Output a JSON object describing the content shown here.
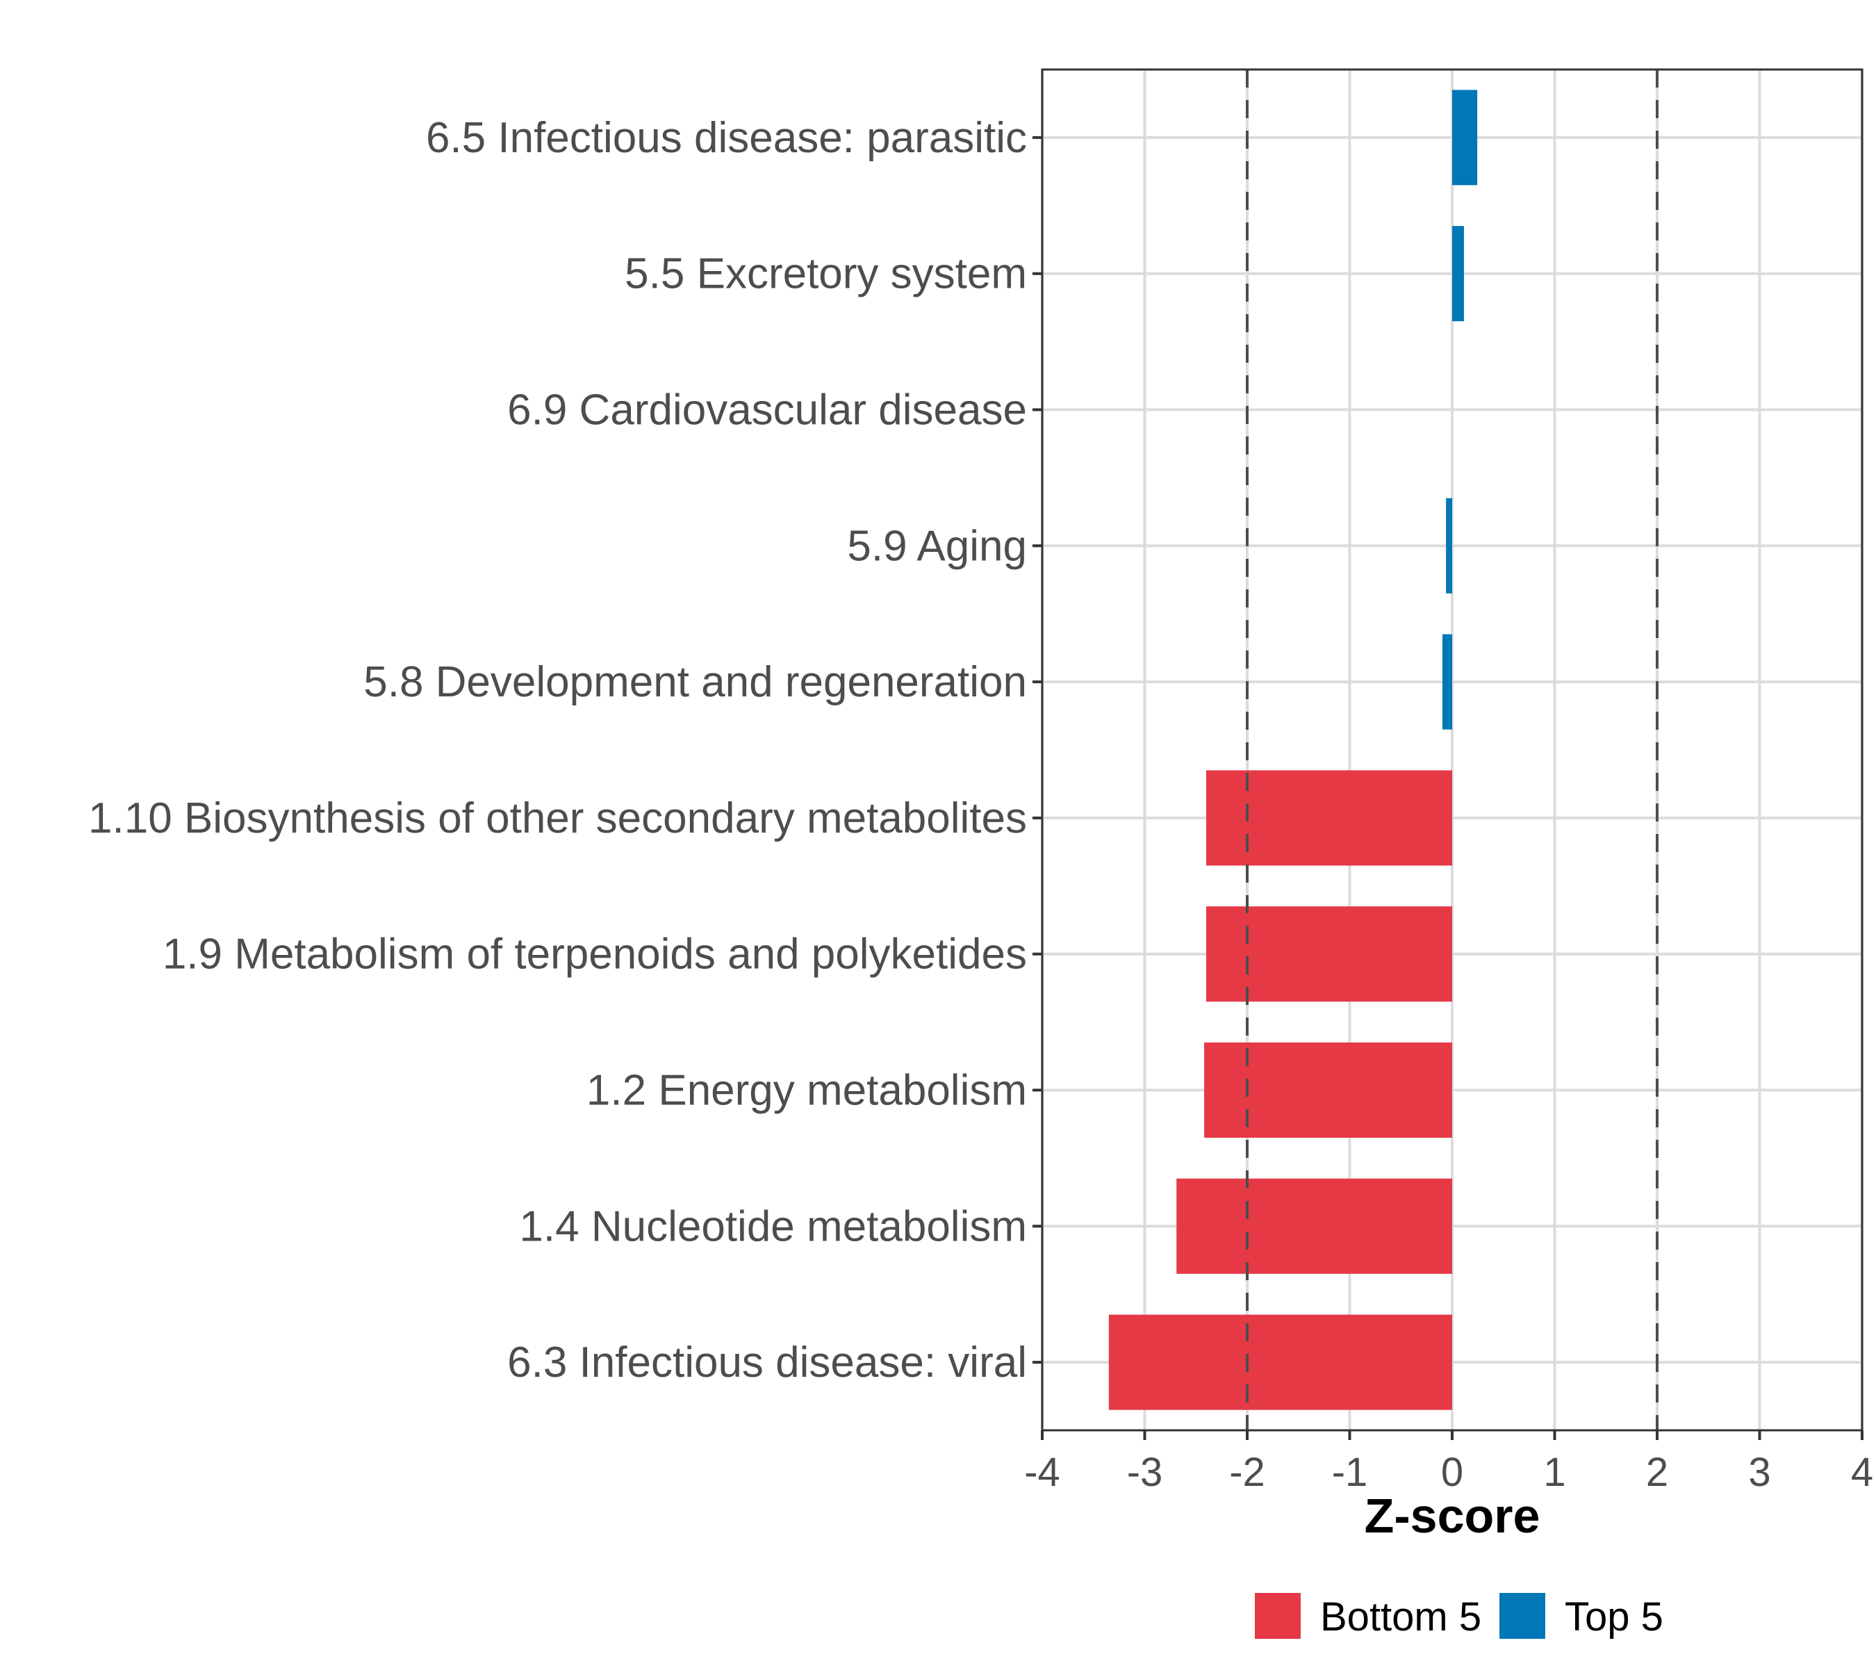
{
  "chart_data": {
    "type": "bar",
    "orientation": "horizontal",
    "title": "",
    "xlabel": "Z-score",
    "ylabel": "",
    "xlim": [
      -4,
      4
    ],
    "xticks": [
      -4,
      -3,
      -2,
      -1,
      0,
      1,
      2,
      3,
      4
    ],
    "xtick_labels": [
      "-4",
      "-3",
      "-2",
      "-1",
      "0",
      "1",
      "2",
      "3",
      "4"
    ],
    "grid": true,
    "reference_lines": [
      {
        "x": -2,
        "style": "dashed"
      },
      {
        "x": 2,
        "style": "dashed"
      }
    ],
    "categories": [
      "6.5 Infectious disease: parasitic",
      "5.5 Excretory system",
      "6.9 Cardiovascular disease",
      "5.9 Aging",
      "5.8 Development and regeneration",
      "1.10 Biosynthesis of other secondary metabolites",
      "1.9 Metabolism of terpenoids and polyketides",
      "1.2 Energy metabolism",
      "1.4 Nucleotide metabolism",
      "6.3 Infectious disease: viral"
    ],
    "values": [
      0.245,
      0.115,
      0.0,
      -0.06,
      -0.095,
      -2.4,
      -2.4,
      -2.42,
      -2.69,
      -3.35
    ],
    "groups": [
      "Top 5",
      "Top 5",
      "Top 5",
      "Top 5",
      "Top 5",
      "Bottom 5",
      "Bottom 5",
      "Bottom 5",
      "Bottom 5",
      "Bottom 5"
    ],
    "legend": {
      "placement": "bottom",
      "entries": [
        {
          "label": "Bottom 5",
          "color": "#e63946"
        },
        {
          "label": "Top 5",
          "color": "#0077b6"
        }
      ]
    },
    "colors": {
      "Bottom 5": "#e63946",
      "Top 5": "#0077b6"
    }
  }
}
